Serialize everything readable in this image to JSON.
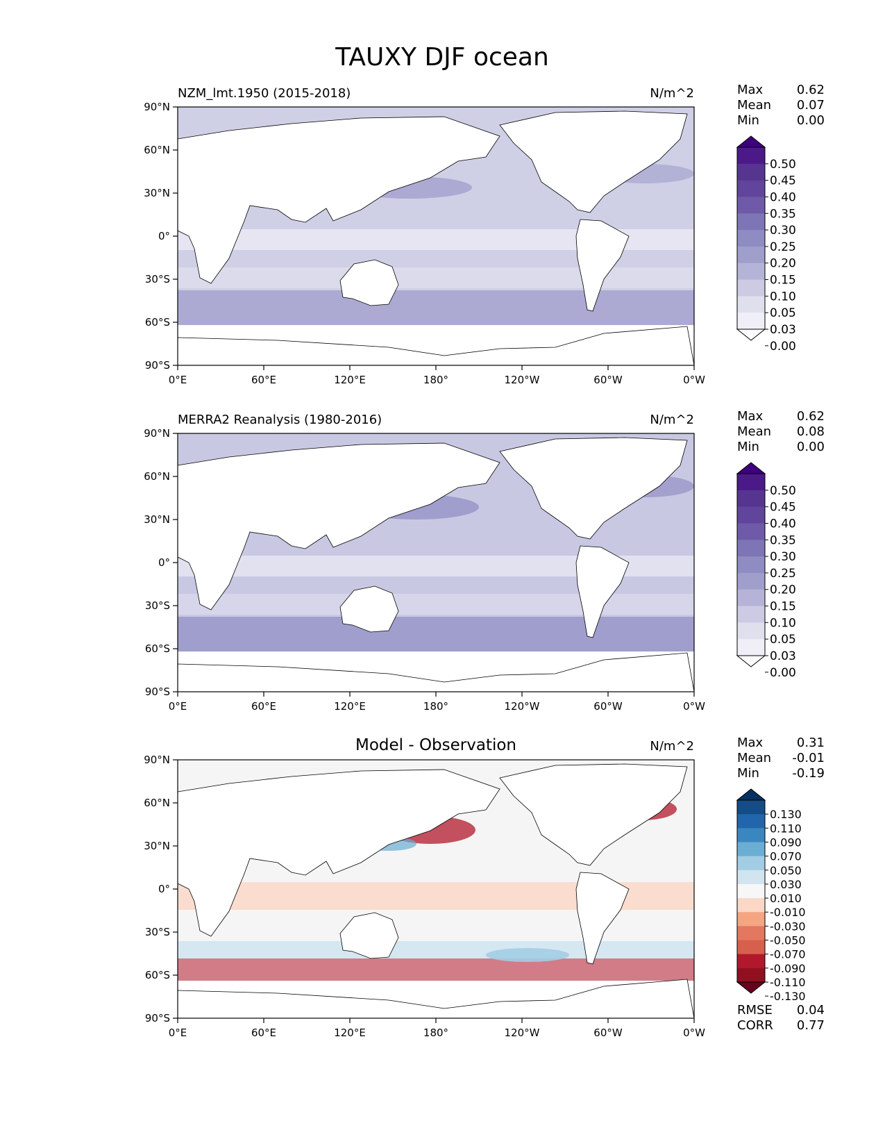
{
  "figure": {
    "title": "TAUXY DJF ocean"
  },
  "axes_ticks": {
    "lat": [
      "90°N",
      "60°N",
      "30°N",
      "0°",
      "30°S",
      "60°S",
      "90°S"
    ],
    "lon": [
      "0°E",
      "60°E",
      "120°E",
      "180°",
      "120°W",
      "60°W",
      "0°W"
    ]
  },
  "panels": [
    {
      "title": "NZM_lmt.1950 (2015-2018)",
      "units": "N/m^2",
      "stats": [
        {
          "label": "Max",
          "value": "0.62"
        },
        {
          "label": "Mean",
          "value": "0.07"
        },
        {
          "label": "Min",
          "value": "0.00"
        }
      ],
      "colorbar": {
        "levels": [
          "0.50",
          "0.45",
          "0.40",
          "0.35",
          "0.30",
          "0.25",
          "0.20",
          "0.15",
          "0.10",
          "0.05",
          "0.03",
          "0.00"
        ],
        "colors": [
          "#3f007d",
          "#4b1a88",
          "#563591",
          "#61449b",
          "#6e5aa8",
          "#7d75b5",
          "#8e8cc2",
          "#a09ecb",
          "#b5b4d8",
          "#cccbe3",
          "#e0dfee",
          "#f0eff7",
          "#fcfbfd"
        ]
      },
      "ocean_color": "#cfcfe6",
      "highlight_color": "#8f8bc3"
    },
    {
      "title": "MERRA2 Reanalysis (1980-2016)",
      "units": "N/m^2",
      "stats": [
        {
          "label": "Max",
          "value": "0.62"
        },
        {
          "label": "Mean",
          "value": "0.08"
        },
        {
          "label": "Min",
          "value": "0.00"
        }
      ],
      "colorbar": {
        "levels": [
          "0.50",
          "0.45",
          "0.40",
          "0.35",
          "0.30",
          "0.25",
          "0.20",
          "0.15",
          "0.10",
          "0.05",
          "0.03",
          "0.00"
        ],
        "colors": [
          "#3f007d",
          "#4b1a88",
          "#563591",
          "#61449b",
          "#6e5aa8",
          "#7d75b5",
          "#8e8cc2",
          "#a09ecb",
          "#b5b4d8",
          "#cccbe3",
          "#e0dfee",
          "#f0eff7",
          "#fcfbfd"
        ]
      },
      "ocean_color": "#c9c8e3",
      "highlight_color": "#8582bd"
    },
    {
      "title": "Model - Observation",
      "units": "N/m^2",
      "stats": [
        {
          "label": "Max",
          "value": "0.31"
        },
        {
          "label": "Mean",
          "value": "-0.01"
        },
        {
          "label": "Min",
          "value": "-0.19"
        }
      ],
      "colorbar": {
        "levels": [
          "0.130",
          "0.110",
          "0.090",
          "0.070",
          "0.050",
          "0.030",
          "0.010",
          "-0.010",
          "-0.030",
          "-0.050",
          "-0.070",
          "-0.090",
          "-0.110",
          "-0.130"
        ],
        "colors": [
          "#053061",
          "#134c87",
          "#2166ac",
          "#3a87c0",
          "#6aaed3",
          "#a3cde4",
          "#d1e5f0",
          "#f7f7f7",
          "#fbd7c6",
          "#f4a582",
          "#e3775f",
          "#d6604d",
          "#b2182b",
          "#91101f",
          "#67001f"
        ]
      },
      "ocean_color": "#f5f5f5",
      "highlight_color": "#b2182b",
      "metrics": [
        {
          "label": "RMSE",
          "value": "0.04"
        },
        {
          "label": "CORR",
          "value": "0.77"
        }
      ]
    }
  ]
}
